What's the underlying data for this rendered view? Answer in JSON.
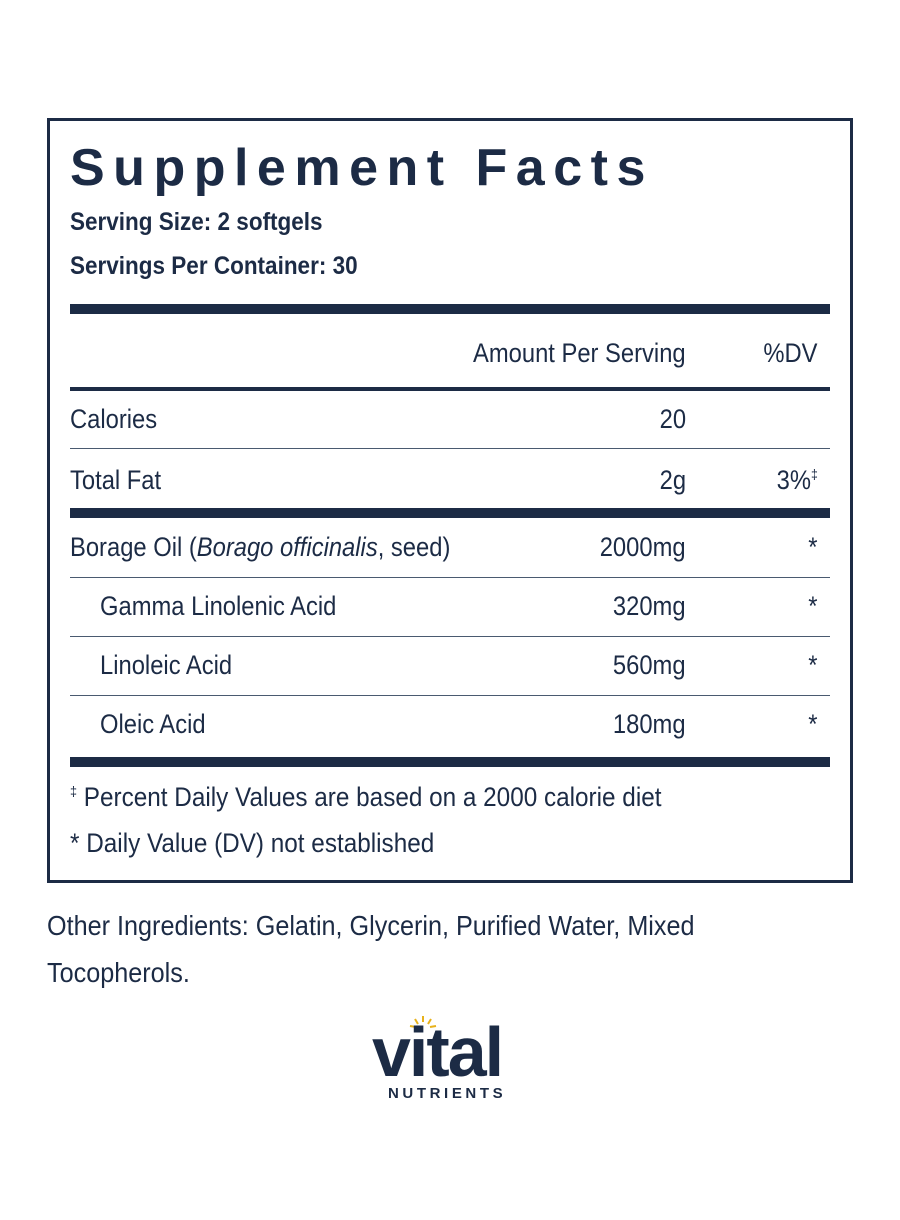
{
  "label": {
    "title": "Supplement Facts",
    "serving_size": "Serving Size: 2 softgels",
    "servings_per_container": "Servings Per Container: 30",
    "header": {
      "amount": "Amount Per Serving",
      "dv": "%DV"
    },
    "rows": [
      {
        "name": "Calories",
        "amount": "20"
      },
      {
        "name": "Total Fat",
        "amount": "2g",
        "dv": "3%",
        "dv_note": "‡"
      },
      {
        "name_parts": [
          "Borage Oil (",
          "Borago officinalis",
          ", seed)"
        ],
        "amount": "2000mg",
        "dv": "*"
      },
      {
        "name": "Gamma Linolenic Acid",
        "amount": "320mg",
        "dv": "*"
      },
      {
        "name": "Linoleic Acid",
        "amount": "560mg",
        "dv": "*"
      },
      {
        "name": "Oleic Acid",
        "amount": "180mg",
        "dv": "*"
      }
    ],
    "footnotes": [
      {
        "mark": "‡",
        "text": "Percent Daily Values are based on a 2000 calorie diet"
      },
      {
        "mark": "*",
        "text": "Daily Value (DV) not established"
      }
    ]
  },
  "other_ingredients": "Other Ingredients: Gelatin, Glycerin, Purified Water, Mixed Tocopherols.",
  "logo": {
    "name": "vital",
    "tagline": "NUTRIENTS"
  }
}
